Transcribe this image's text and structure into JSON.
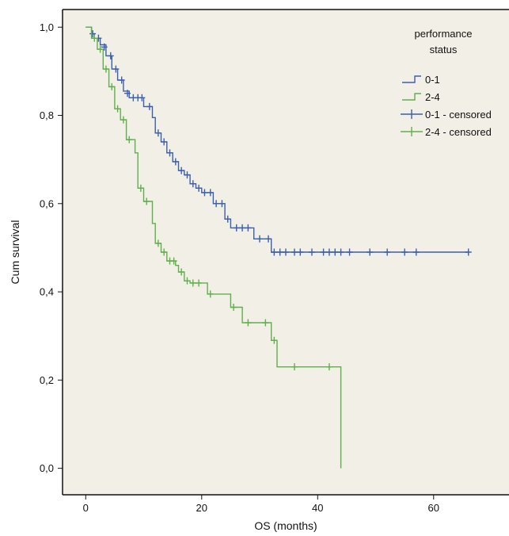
{
  "chart_data": {
    "type": "line",
    "subtype": "kaplan-meier step",
    "title": "",
    "xlabel": "OS (months)",
    "ylabel": "Cum survival",
    "xlim": [
      -4,
      73
    ],
    "ylim": [
      -0.06,
      1.04
    ],
    "x_ticks": [
      0,
      20,
      40,
      60
    ],
    "x_tick_labels": [
      "0",
      "20",
      "40",
      "60"
    ],
    "y_ticks": [
      0.0,
      0.2,
      0.4,
      0.6,
      0.8,
      1.0
    ],
    "y_tick_labels": [
      "0,0",
      "0,2",
      "0,4",
      "0,6",
      "0,8",
      "1,0"
    ],
    "grid": false,
    "background": "#f2efe6",
    "legend": {
      "title": "performance status",
      "title_lines": [
        "performance",
        "status"
      ],
      "placement": "top-right",
      "entries": [
        "0-1",
        "2-4",
        "0-1 - censored",
        "2-4 - censored"
      ]
    },
    "series": [
      {
        "name": "0-1",
        "color": "#3a5fae",
        "steps": [
          [
            0,
            1.0
          ],
          [
            1,
            0.985
          ],
          [
            1.5,
            0.975
          ],
          [
            2.5,
            0.96
          ],
          [
            3.5,
            0.935
          ],
          [
            4.5,
            0.905
          ],
          [
            5.5,
            0.88
          ],
          [
            6.5,
            0.855
          ],
          [
            7.5,
            0.84
          ],
          [
            10,
            0.82
          ],
          [
            11.5,
            0.795
          ],
          [
            12,
            0.76
          ],
          [
            13,
            0.74
          ],
          [
            14,
            0.715
          ],
          [
            15,
            0.695
          ],
          [
            16,
            0.675
          ],
          [
            17,
            0.665
          ],
          [
            18,
            0.645
          ],
          [
            19,
            0.635
          ],
          [
            20,
            0.625
          ],
          [
            22,
            0.6
          ],
          [
            24,
            0.565
          ],
          [
            25,
            0.545
          ],
          [
            29,
            0.52
          ],
          [
            32,
            0.49
          ],
          [
            66,
            0.49
          ]
        ],
        "censored": [
          [
            1.2,
            0.985
          ],
          [
            2.2,
            0.975
          ],
          [
            3.2,
            0.955
          ],
          [
            4.3,
            0.935
          ],
          [
            5.2,
            0.905
          ],
          [
            6.2,
            0.88
          ],
          [
            7.2,
            0.85
          ],
          [
            8.2,
            0.84
          ],
          [
            9,
            0.84
          ],
          [
            9.7,
            0.84
          ],
          [
            11,
            0.82
          ],
          [
            12.5,
            0.76
          ],
          [
            13.5,
            0.74
          ],
          [
            14.5,
            0.715
          ],
          [
            15.5,
            0.695
          ],
          [
            16.5,
            0.675
          ],
          [
            17.5,
            0.665
          ],
          [
            18.5,
            0.645
          ],
          [
            19.5,
            0.635
          ],
          [
            20.5,
            0.625
          ],
          [
            21.5,
            0.625
          ],
          [
            22.5,
            0.6
          ],
          [
            23.5,
            0.6
          ],
          [
            24.5,
            0.565
          ],
          [
            26,
            0.545
          ],
          [
            27,
            0.545
          ],
          [
            28,
            0.545
          ],
          [
            30,
            0.52
          ],
          [
            31.5,
            0.52
          ],
          [
            32.5,
            0.49
          ],
          [
            33.5,
            0.49
          ],
          [
            34.5,
            0.49
          ],
          [
            36,
            0.49
          ],
          [
            37,
            0.49
          ],
          [
            39,
            0.49
          ],
          [
            41,
            0.49
          ],
          [
            42,
            0.49
          ],
          [
            43,
            0.49
          ],
          [
            44,
            0.49
          ],
          [
            45.5,
            0.49
          ],
          [
            49,
            0.49
          ],
          [
            52,
            0.49
          ],
          [
            55,
            0.49
          ],
          [
            57,
            0.49
          ],
          [
            66,
            0.49
          ]
        ]
      },
      {
        "name": "2-4",
        "color": "#5fb04c",
        "steps": [
          [
            0,
            1.0
          ],
          [
            1,
            0.975
          ],
          [
            2,
            0.95
          ],
          [
            3,
            0.905
          ],
          [
            4,
            0.865
          ],
          [
            5,
            0.815
          ],
          [
            6,
            0.79
          ],
          [
            7,
            0.745
          ],
          [
            8.5,
            0.715
          ],
          [
            9,
            0.635
          ],
          [
            10,
            0.605
          ],
          [
            11.5,
            0.555
          ],
          [
            12,
            0.51
          ],
          [
            13,
            0.49
          ],
          [
            14,
            0.47
          ],
          [
            15.5,
            0.46
          ],
          [
            16,
            0.445
          ],
          [
            17,
            0.425
          ],
          [
            18,
            0.42
          ],
          [
            21,
            0.395
          ],
          [
            25,
            0.365
          ],
          [
            27,
            0.33
          ],
          [
            32,
            0.29
          ],
          [
            33,
            0.23
          ],
          [
            44,
            0.23
          ],
          [
            44,
            0.0
          ]
        ],
        "censored": [
          [
            1.5,
            0.975
          ],
          [
            2.5,
            0.95
          ],
          [
            3.5,
            0.905
          ],
          [
            4.5,
            0.865
          ],
          [
            5.5,
            0.815
          ],
          [
            6.5,
            0.79
          ],
          [
            7.5,
            0.745
          ],
          [
            9.5,
            0.635
          ],
          [
            10.5,
            0.605
          ],
          [
            12.5,
            0.51
          ],
          [
            13.5,
            0.49
          ],
          [
            14.5,
            0.47
          ],
          [
            15.2,
            0.47
          ],
          [
            16.5,
            0.445
          ],
          [
            17.5,
            0.425
          ],
          [
            18.5,
            0.42
          ],
          [
            19.5,
            0.42
          ],
          [
            21.5,
            0.395
          ],
          [
            25.5,
            0.365
          ],
          [
            28,
            0.33
          ],
          [
            31,
            0.33
          ],
          [
            32.5,
            0.29
          ],
          [
            36,
            0.23
          ],
          [
            42,
            0.23
          ]
        ]
      }
    ]
  }
}
